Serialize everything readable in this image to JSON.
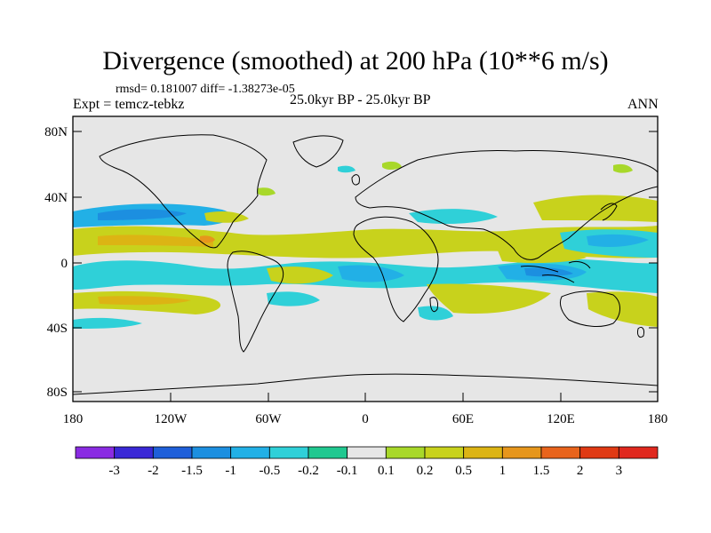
{
  "title": "Divergence (smoothed) at 200 hPa (10**6 m/s)",
  "stats": "rmsd= 0.181007 diff= -1.38273e-05",
  "experiment": "Expt = temcz-tebkz",
  "period": "25.0kyr BP - 25.0kyr BP",
  "season": "ANN",
  "axes": {
    "x_ticks": [
      "180",
      "120W",
      "60W",
      "0",
      "60E",
      "120E",
      "180"
    ],
    "y_ticks": [
      "80N",
      "40N",
      "0",
      "40S",
      "80S"
    ]
  },
  "colorbar": {
    "labels": [
      "-3",
      "-2",
      "-1.5",
      "-1",
      "-0.5",
      "-0.2",
      "-0.1",
      "0.1",
      "0.2",
      "0.5",
      "1",
      "1.5",
      "2",
      "3"
    ],
    "colors": [
      "#8a2be2",
      "#3a28d6",
      "#1f5fd9",
      "#1c8fe0",
      "#22b0e6",
      "#2fd0d8",
      "#20c890",
      "#e6e6e6",
      "#a8d82a",
      "#c8d21c",
      "#dcb414",
      "#e6961c",
      "#e8641c",
      "#e03a14",
      "#e0281e"
    ]
  },
  "map_colors": {
    "background": "#e6e6e6",
    "coast": "#000000"
  }
}
